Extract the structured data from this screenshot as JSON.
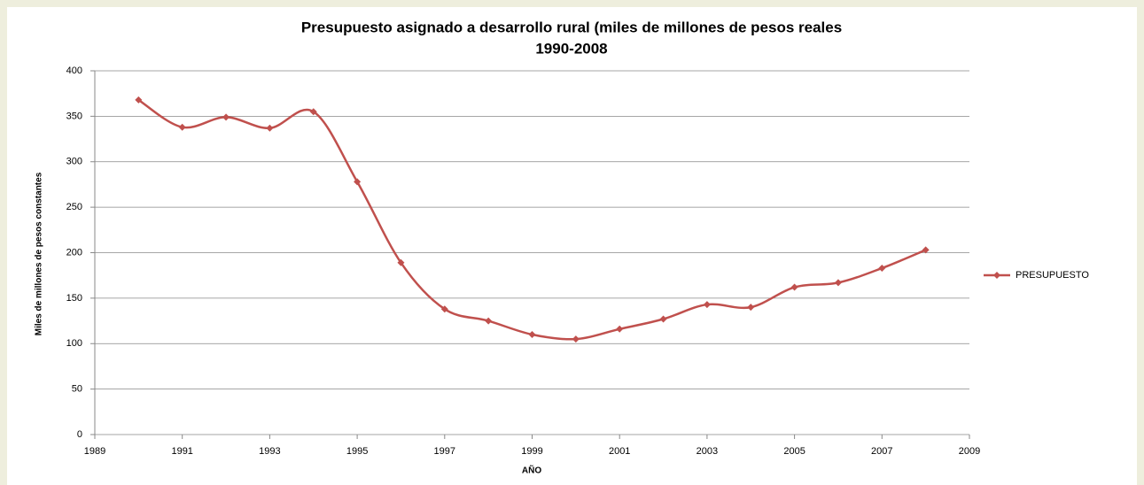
{
  "chart_data": {
    "type": "line",
    "title": [
      "Presupuesto asignado a desarrollo rural (miles de millones de pesos reales",
      "1990-2008"
    ],
    "x_label": "AÑO",
    "y_label": "Miles de millones de pesos constantes",
    "x": [
      1990,
      1991,
      1992,
      1993,
      1994,
      1995,
      1996,
      1997,
      1998,
      1999,
      2000,
      2001,
      2002,
      2003,
      2004,
      2005,
      2006,
      2007,
      2008
    ],
    "series": [
      {
        "name": "PRESUPUESTO",
        "color": "#c0504d",
        "values": [
          368,
          338,
          349,
          337,
          355,
          278,
          189,
          138,
          125,
          110,
          105,
          116,
          127,
          143,
          140,
          162,
          167,
          183,
          203
        ]
      }
    ],
    "xlim": [
      1989,
      2009
    ],
    "xticks": [
      1989,
      1991,
      1993,
      1995,
      1997,
      1999,
      2001,
      2003,
      2005,
      2007,
      2009
    ],
    "ylim": [
      0,
      400
    ],
    "yticks": [
      0,
      50,
      100,
      150,
      200,
      250,
      300,
      350,
      400
    ],
    "grid": true,
    "legend": "right"
  }
}
